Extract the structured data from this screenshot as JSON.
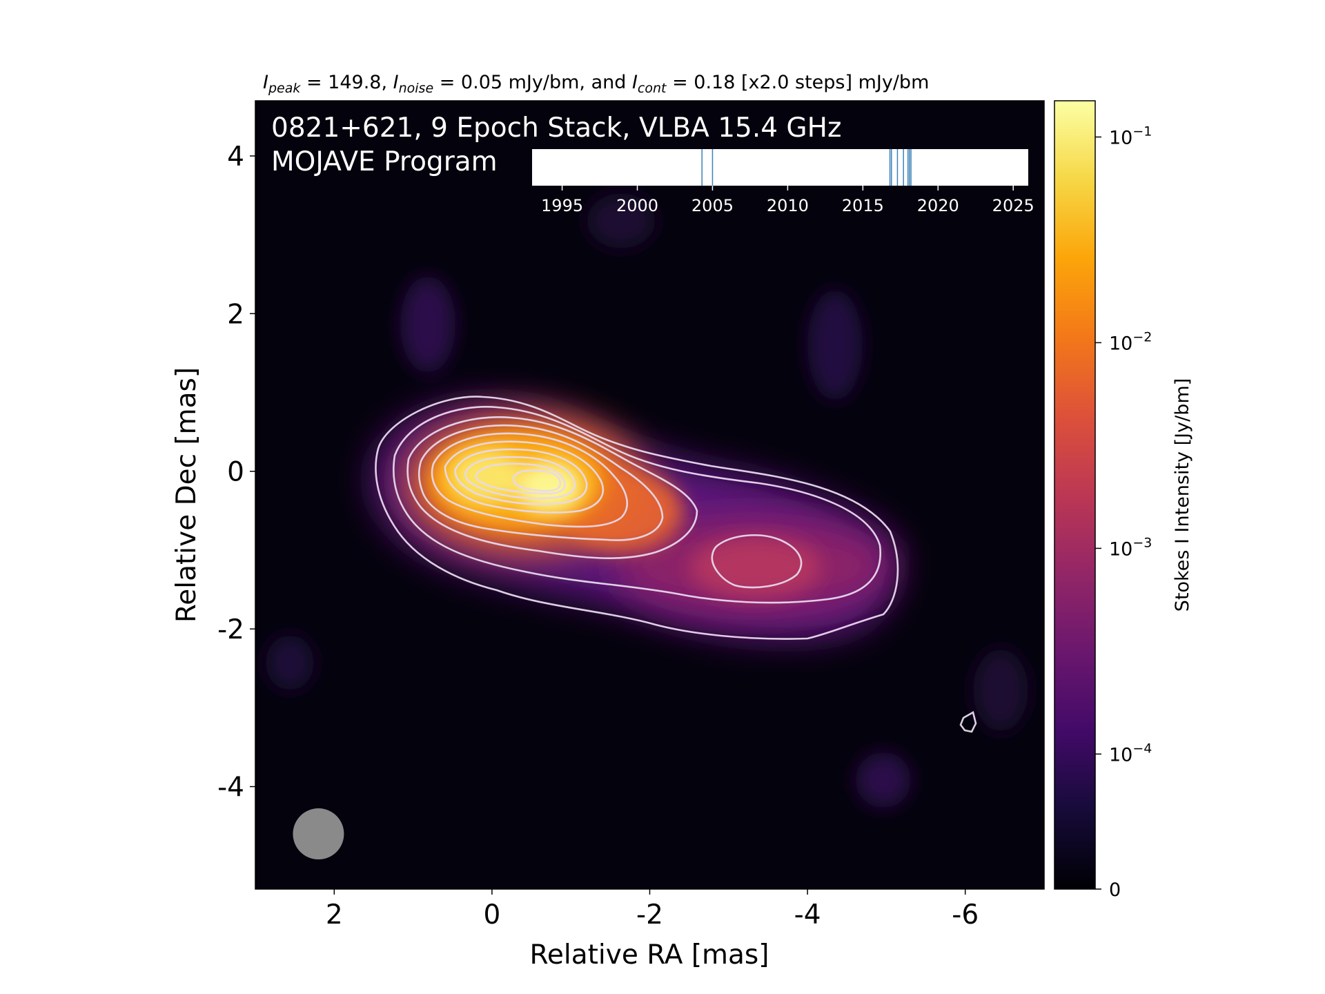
{
  "chart_data": {
    "type": "heatmap",
    "header": {
      "peak_sym": "I",
      "peak_sub": "peak",
      "peak_text": " = 149.8, ",
      "noise_sym": "I",
      "noise_sub": "noise",
      "noise_text": " = 0.05 mJy/bm, and ",
      "cont_sym": "I",
      "cont_sub": "cont",
      "cont_text": " = 0.18 [x2.0 steps] mJy/bm"
    },
    "title_line1": "0821+621, 9 Epoch Stack, VLBA 15.4 GHz",
    "title_line2": "MOJAVE Program",
    "xlabel": "Relative RA [mas]",
    "ylabel": "Relative Dec [mas]",
    "xlim": [
      3,
      -7
    ],
    "ylim": [
      -5.3,
      4.7
    ],
    "xticks": [
      2,
      0,
      -2,
      -4,
      -6
    ],
    "yticks": [
      4,
      2,
      0,
      -2,
      -4
    ],
    "xtick_labels": [
      "2",
      "0",
      "-2",
      "-4",
      "-6"
    ],
    "ytick_labels": [
      "4",
      "2",
      "0",
      "-2",
      "-4"
    ],
    "colorbar": {
      "label": "Stokes I Intensity [Jy/bm]",
      "scale": "log",
      "range_jy": [
        0,
        0.15
      ],
      "ticks": [
        {
          "value": 0.1,
          "base": "10",
          "exp": "−1"
        },
        {
          "value": 0.01,
          "base": "10",
          "exp": "−2"
        },
        {
          "value": 0.001,
          "base": "10",
          "exp": "−3"
        },
        {
          "value": 0.0001,
          "base": "10",
          "exp": "−4"
        },
        {
          "value": 0,
          "base": "0",
          "exp": ""
        }
      ],
      "colormap": "inferno"
    },
    "components": [
      {
        "ra": 0.0,
        "dec": 0.0,
        "peak_jy": 0.1498
      },
      {
        "ra": -0.8,
        "dec": -0.2,
        "peak_jy": 0.12
      },
      {
        "ra": -2.0,
        "dec": -0.6,
        "peak_jy": 0.005
      },
      {
        "ra": -3.4,
        "dec": -1.2,
        "peak_jy": 0.0018
      },
      {
        "ra": -4.6,
        "dec": -1.1,
        "peak_jy": 0.0007
      }
    ],
    "contour_levels_mjy": [
      0.18,
      0.36,
      0.72,
      1.44,
      2.88,
      5.76,
      11.52,
      23.04,
      46.08,
      92.16
    ],
    "beam": {
      "ra": 2.2,
      "dec": -4.6,
      "diameter_mas": 0.65
    },
    "epoch_timeline": {
      "xlim": [
        1993,
        2026
      ],
      "ticks": [
        1995,
        2000,
        2005,
        2010,
        2015,
        2020,
        2025
      ],
      "tick_labels": [
        "1995",
        "2000",
        "2005",
        "2010",
        "2015",
        "2020",
        "2025"
      ],
      "epochs": [
        2004.3,
        2005.0,
        2016.8,
        2016.9,
        2017.3,
        2017.7,
        2018.1,
        2018.2,
        2018.0
      ]
    }
  }
}
